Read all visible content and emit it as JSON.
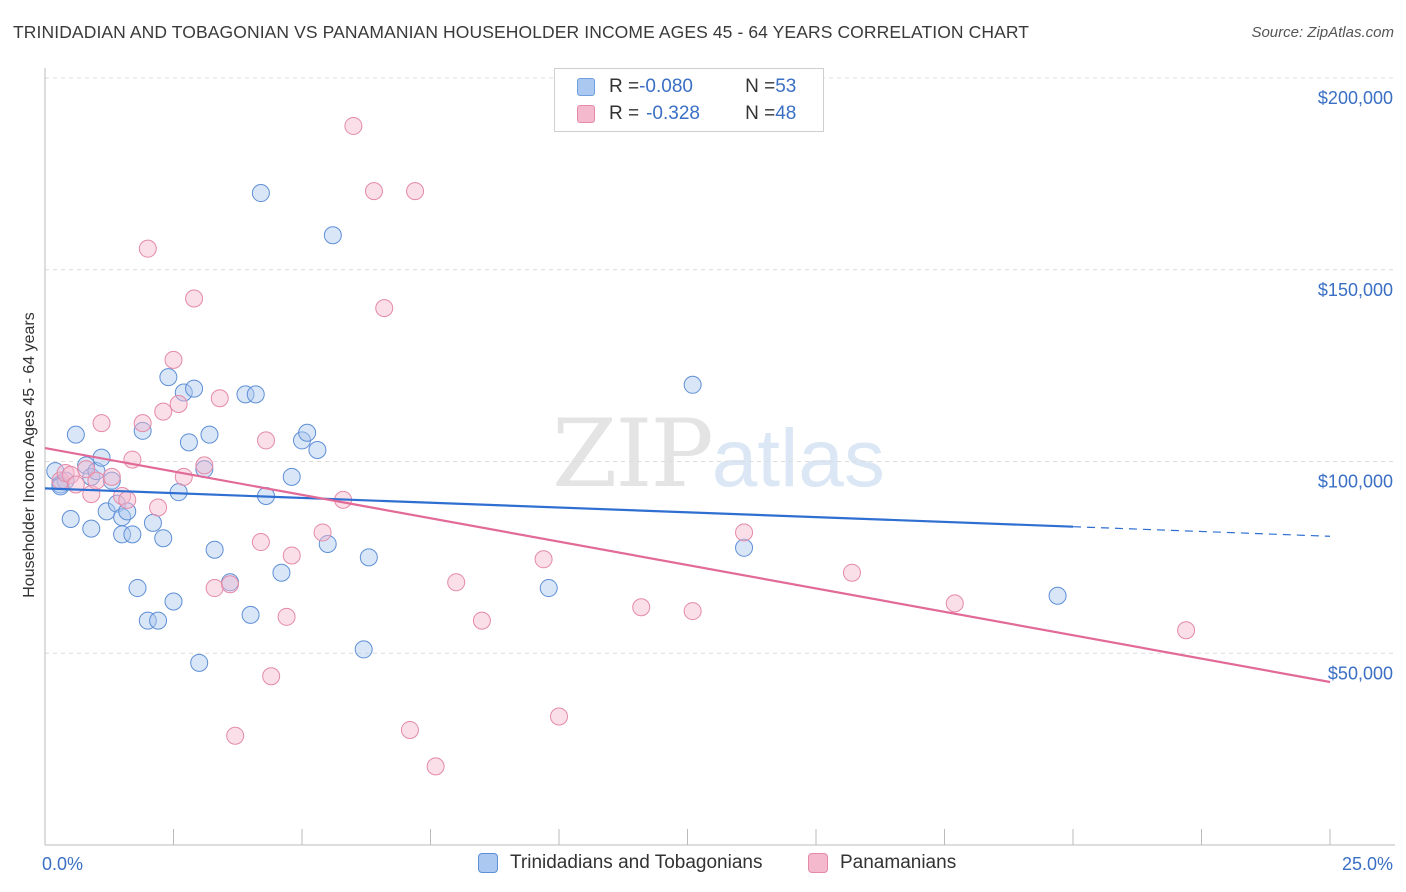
{
  "title": "TRINIDADIAN AND TOBAGONIAN VS PANAMANIAN HOUSEHOLDER INCOME AGES 45 - 64 YEARS CORRELATION CHART",
  "source": "Source: ZipAtlas.com",
  "watermark": {
    "zip": "ZIP",
    "atlas": "atlas"
  },
  "legend": {
    "rows": [
      {
        "r_label": "R = ",
        "r_value": "-0.080",
        "n_label": "N = ",
        "n_value": "53",
        "color": "#aac8f0",
        "stroke": "#6f9fdd"
      },
      {
        "r_label": "R = ",
        "r_value": "-0.328",
        "n_label": "N = ",
        "n_value": "48",
        "color": "#f5b9ce",
        "stroke": "#e48aa8"
      }
    ]
  },
  "bottom_legend": [
    "Trinidadians and Tobagonians",
    "Panamanians"
  ],
  "chart_data": {
    "type": "scatter",
    "title": "TRINIDADIAN AND TOBAGONIAN VS PANAMANIAN HOUSEHOLDER INCOME AGES 45 - 64 YEARS CORRELATION CHART",
    "xlabel": "",
    "ylabel": "Householder Income Ages 45 - 64 years",
    "xlim": [
      0,
      25
    ],
    "ylim": [
      0,
      200000
    ],
    "x_tick_labels": {
      "min": "0.0%",
      "max": "25.0%"
    },
    "y_ticks": [
      {
        "value": 50000,
        "label": "$50,000"
      },
      {
        "value": 100000,
        "label": "$100,000"
      },
      {
        "value": 150000,
        "label": "$150,000"
      },
      {
        "value": 200000,
        "label": "$200,000"
      }
    ],
    "grid": true,
    "series": [
      {
        "name": "Trinidadians and Tobagonians",
        "color": "#aac8f0",
        "stroke": "#5e8fd6",
        "line_color": "#2f6fd1",
        "trend": {
          "x0": 0,
          "y0": 93000,
          "x1": 20,
          "y1": 83000,
          "dash_to_x": 25,
          "dash_to_y": 80500
        },
        "points": [
          [
            0.2,
            97500
          ],
          [
            0.3,
            94000
          ],
          [
            0.4,
            95000
          ],
          [
            0.5,
            85000
          ],
          [
            0.6,
            107000
          ],
          [
            0.8,
            99000
          ],
          [
            0.9,
            96000
          ],
          [
            0.9,
            82500
          ],
          [
            1.0,
            97500
          ],
          [
            1.1,
            101000
          ],
          [
            1.2,
            87000
          ],
          [
            1.3,
            95000
          ],
          [
            1.4,
            89000
          ],
          [
            1.5,
            81000
          ],
          [
            1.5,
            85500
          ],
          [
            1.6,
            87000
          ],
          [
            1.7,
            81000
          ],
          [
            1.8,
            67000
          ],
          [
            1.9,
            108000
          ],
          [
            2.0,
            58500
          ],
          [
            2.1,
            84000
          ],
          [
            2.2,
            58500
          ],
          [
            2.3,
            80000
          ],
          [
            2.4,
            122000
          ],
          [
            2.5,
            63500
          ],
          [
            2.6,
            92000
          ],
          [
            2.7,
            118000
          ],
          [
            2.8,
            105000
          ],
          [
            2.9,
            119000
          ],
          [
            3.0,
            47500
          ],
          [
            3.1,
            98000
          ],
          [
            3.2,
            107000
          ],
          [
            3.3,
            77000
          ],
          [
            3.6,
            68500
          ],
          [
            3.9,
            117500
          ],
          [
            4.0,
            60000
          ],
          [
            4.1,
            117500
          ],
          [
            4.2,
            170000
          ],
          [
            4.3,
            91000
          ],
          [
            4.6,
            71000
          ],
          [
            4.8,
            96000
          ],
          [
            5.0,
            105500
          ],
          [
            5.1,
            107500
          ],
          [
            5.3,
            103000
          ],
          [
            5.5,
            78500
          ],
          [
            5.6,
            159000
          ],
          [
            6.3,
            75000
          ],
          [
            6.2,
            51000
          ],
          [
            9.8,
            67000
          ],
          [
            12.6,
            120000
          ],
          [
            13.6,
            77500
          ],
          [
            19.7,
            65000
          ],
          [
            0.3,
            93500
          ]
        ]
      },
      {
        "name": "Panamanians",
        "color": "#f5b9ce",
        "stroke": "#e48aa8",
        "line_color": "#e26a97",
        "trend": {
          "x0": 0,
          "y0": 103500,
          "x1": 25,
          "y1": 42500
        },
        "points": [
          [
            0.3,
            95000
          ],
          [
            0.4,
            97000
          ],
          [
            0.5,
            96500
          ],
          [
            0.6,
            94000
          ],
          [
            0.8,
            98000
          ],
          [
            0.9,
            91500
          ],
          [
            1.0,
            95000
          ],
          [
            1.1,
            110000
          ],
          [
            1.3,
            96000
          ],
          [
            1.5,
            91000
          ],
          [
            1.6,
            90000
          ],
          [
            1.7,
            100500
          ],
          [
            1.9,
            110000
          ],
          [
            2.0,
            155500
          ],
          [
            2.2,
            88000
          ],
          [
            2.3,
            113000
          ],
          [
            2.5,
            126500
          ],
          [
            2.6,
            115000
          ],
          [
            2.7,
            96000
          ],
          [
            2.9,
            142500
          ],
          [
            3.1,
            99000
          ],
          [
            3.3,
            67000
          ],
          [
            3.4,
            116500
          ],
          [
            3.6,
            68000
          ],
          [
            3.7,
            28500
          ],
          [
            4.2,
            79000
          ],
          [
            4.3,
            105500
          ],
          [
            4.4,
            44000
          ],
          [
            4.7,
            59500
          ],
          [
            4.8,
            75500
          ],
          [
            5.4,
            81500
          ],
          [
            5.8,
            90000
          ],
          [
            6.0,
            187500
          ],
          [
            6.4,
            170500
          ],
          [
            6.6,
            140000
          ],
          [
            7.1,
            30000
          ],
          [
            7.2,
            170500
          ],
          [
            7.6,
            20500
          ],
          [
            8.0,
            68500
          ],
          [
            8.5,
            58500
          ],
          [
            9.7,
            74500
          ],
          [
            10.0,
            33500
          ],
          [
            11.6,
            62000
          ],
          [
            12.6,
            61000
          ],
          [
            13.6,
            81500
          ],
          [
            15.7,
            71000
          ],
          [
            17.7,
            63000
          ],
          [
            22.2,
            56000
          ]
        ]
      }
    ]
  }
}
